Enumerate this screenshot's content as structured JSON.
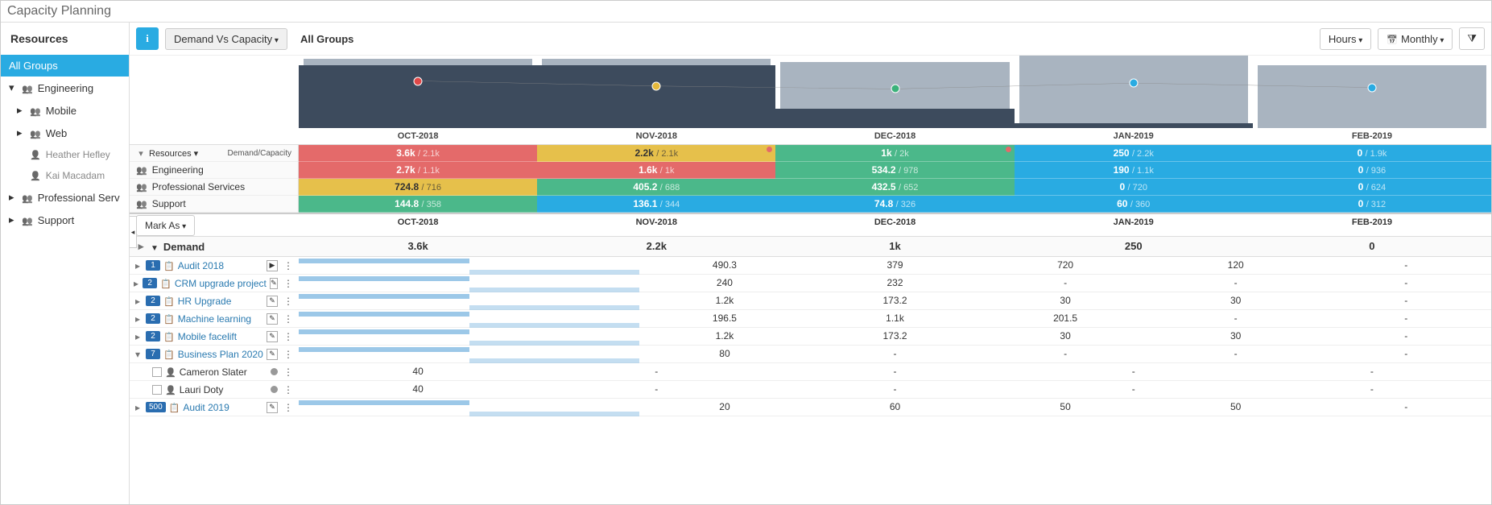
{
  "title": "Capacity Planning",
  "sidebar": {
    "header": "Resources",
    "all_groups": "All Groups",
    "items": [
      {
        "label": "Engineering",
        "type": "group"
      },
      {
        "label": "Mobile",
        "type": "sub"
      },
      {
        "label": "Web",
        "type": "sub"
      },
      {
        "label": "Heather Hefley",
        "type": "person"
      },
      {
        "label": "Kai Macadam",
        "type": "person"
      },
      {
        "label": "Professional Serv",
        "type": "group"
      },
      {
        "label": "Support",
        "type": "group"
      }
    ]
  },
  "toolbar": {
    "view_mode": "Demand Vs Capacity",
    "scope": "All Groups",
    "unit": "Hours",
    "period": "Monthly"
  },
  "months": [
    "OCT-2018",
    "NOV-2018",
    "DEC-2018",
    "JAN-2019",
    "FEB-2019"
  ],
  "chart": {
    "capacity_max": 2200,
    "bars": [
      {
        "capacity": 2100,
        "demand": 3600,
        "dot_color": "#e04848",
        "dot_y": 0.35
      },
      {
        "capacity": 2100,
        "demand": 2200,
        "dot_color": "#e6b93b",
        "dot_y": 0.42
      },
      {
        "capacity": 2000,
        "demand": 1000,
        "dot_color": "#3bb27a",
        "dot_y": 0.46
      },
      {
        "capacity": 2200,
        "demand": 250,
        "dot_color": "#29abe2",
        "dot_y": 0.38
      },
      {
        "capacity": 1900,
        "demand": 0,
        "dot_color": "#29abe2",
        "dot_y": 0.44
      }
    ],
    "bar_outer_color": "#a9b4c0",
    "bar_inner_color": "#3d4b5d",
    "line_color": "#888"
  },
  "capacity_table": {
    "header_label": "Resources",
    "header_sub": "Demand/Capacity",
    "rows": [
      {
        "label": "",
        "is_total": true,
        "cells": [
          {
            "demand": "3.6k",
            "capacity": "2.1k",
            "color": "red"
          },
          {
            "demand": "2.2k",
            "capacity": "2.1k",
            "color": "yellow",
            "flag": true
          },
          {
            "demand": "1k",
            "capacity": "2k",
            "color": "green",
            "flag": true
          },
          {
            "demand": "250",
            "capacity": "2.2k",
            "color": "blue"
          },
          {
            "demand": "0",
            "capacity": "1.9k",
            "color": "blue"
          }
        ]
      },
      {
        "label": "Engineering",
        "cells": [
          {
            "demand": "2.7k",
            "capacity": "1.1k",
            "color": "red"
          },
          {
            "demand": "1.6k",
            "capacity": "1k",
            "color": "red"
          },
          {
            "demand": "534.2",
            "capacity": "978",
            "color": "green"
          },
          {
            "demand": "190",
            "capacity": "1.1k",
            "color": "blue"
          },
          {
            "demand": "0",
            "capacity": "936",
            "color": "blue"
          }
        ]
      },
      {
        "label": "Professional Services",
        "cells": [
          {
            "demand": "724.8",
            "capacity": "716",
            "color": "yellow"
          },
          {
            "demand": "405.2",
            "capacity": "688",
            "color": "green"
          },
          {
            "demand": "432.5",
            "capacity": "652",
            "color": "green"
          },
          {
            "demand": "0",
            "capacity": "720",
            "color": "blue"
          },
          {
            "demand": "0",
            "capacity": "624",
            "color": "blue"
          }
        ]
      },
      {
        "label": "Support",
        "cells": [
          {
            "demand": "144.8",
            "capacity": "358",
            "color": "green"
          },
          {
            "demand": "136.1",
            "capacity": "344",
            "color": "blue"
          },
          {
            "demand": "74.8",
            "capacity": "326",
            "color": "blue"
          },
          {
            "demand": "60",
            "capacity": "360",
            "color": "blue"
          },
          {
            "demand": "0",
            "capacity": "312",
            "color": "blue"
          }
        ]
      }
    ]
  },
  "demand_section": {
    "mark_as": "Mark As",
    "header_label": "Demand",
    "totals": [
      "3.6k",
      "2.2k",
      "1k",
      "250",
      "0"
    ],
    "rows": [
      {
        "badge": "1",
        "name": "Audit 2018",
        "handle": "▸",
        "edit": "▶",
        "values": [
          "490.3",
          "379",
          "720",
          "120",
          "-"
        ],
        "bar_from": 0,
        "bar_to": 80
      },
      {
        "badge": "2",
        "name": "CRM upgrade project",
        "handle": "▸",
        "edit": "✎",
        "values": [
          "240",
          "232",
          "-",
          "-",
          "-"
        ],
        "bar_from": 0,
        "bar_to": 40
      },
      {
        "badge": "2",
        "name": "HR Upgrade",
        "handle": "▸",
        "edit": "✎",
        "values": [
          "1.2k",
          "173.2",
          "30",
          "30",
          "-"
        ],
        "bar_from": 0,
        "bar_to": 78
      },
      {
        "badge": "2",
        "name": "Machine learning",
        "handle": "▸",
        "edit": "✎",
        "values": [
          "196.5",
          "1.1k",
          "201.5",
          "-",
          "-"
        ],
        "bar_from": 0,
        "bar_to": 100
      },
      {
        "badge": "2",
        "name": "Mobile facelift",
        "handle": "▸",
        "edit": "✎",
        "values": [
          "1.2k",
          "173.2",
          "30",
          "30",
          "-"
        ],
        "bar_from": 0,
        "bar_to": 100
      },
      {
        "badge": "7",
        "name": "Business Plan 2020",
        "handle": "▾",
        "edit": "✎",
        "values": [
          "80",
          "-",
          "-",
          "-",
          "-"
        ],
        "bar_from": 0,
        "bar_to": 15
      },
      {
        "child": true,
        "name": "Cameron Slater",
        "values": [
          "40",
          "-",
          "-",
          "-",
          "-"
        ]
      },
      {
        "child": true,
        "name": "Lauri Doty",
        "values": [
          "40",
          "-",
          "-",
          "-",
          "-"
        ]
      },
      {
        "badge": "500",
        "name": "Audit 2019",
        "handle": "▸",
        "edit": "✎",
        "values": [
          "20",
          "60",
          "50",
          "50",
          "-"
        ],
        "bar_from": 0,
        "bar_to": 100
      }
    ]
  },
  "colors": {
    "red": "#e46a6a",
    "yellow": "#e6c04b",
    "green": "#4bb88a",
    "blue": "#29abe2",
    "accent": "#29abe2",
    "badge": "#2a6db0",
    "gantt": "#9cc8e8"
  }
}
